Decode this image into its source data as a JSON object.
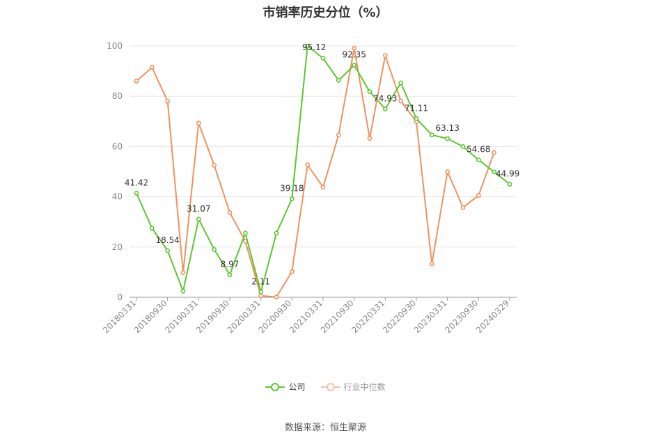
{
  "chart_data": {
    "type": "line",
    "title": "市销率历史分位（%）",
    "ylim": [
      0,
      100
    ],
    "yticks": [
      0,
      20,
      40,
      60,
      80,
      100
    ],
    "grid": true,
    "legend_position": "bottom-center",
    "x_tick_labels": [
      "20180331",
      "20180930",
      "20190331",
      "20190930",
      "20200331",
      "20200930",
      "20210331",
      "20210930",
      "20220331",
      "20220930",
      "20230331",
      "20230930",
      "20240329"
    ],
    "x": [
      "20180331",
      "20180630",
      "20180930",
      "20181231",
      "20190331",
      "20190630",
      "20190930",
      "20191231",
      "20200331",
      "20200630",
      "20200930",
      "20201231",
      "20210331",
      "20210630",
      "20210930",
      "20211231",
      "20220331",
      "20220630",
      "20220930",
      "20221231",
      "20230331",
      "20230630",
      "20230930",
      "20231231",
      "20240329"
    ],
    "series": [
      {
        "name": "公司",
        "color": "#5cc72e",
        "values": [
          41.42,
          27.5,
          18.54,
          2.4,
          31.07,
          19.0,
          8.97,
          25.5,
          2.11,
          25.5,
          39.18,
          100,
          95.12,
          86.3,
          92.35,
          81.8,
          74.93,
          85.3,
          71.11,
          64.6,
          63.13,
          60.0,
          54.68,
          49.9,
          44.99
        ],
        "labels": {
          "0": "41.42",
          "2": "18.54",
          "4": "31.07",
          "6": "8.97",
          "8": "2.11",
          "10": "39.18",
          "12": "95.12",
          "14": "92.35",
          "16": "74.93",
          "18": "71.11",
          "20": "63.13",
          "22": "54.68",
          "24": "44.99"
        }
      },
      {
        "name": "行业中位数",
        "color": "#f0915f",
        "values": [
          86.0,
          91.5,
          78.0,
          9.8,
          69.3,
          52.5,
          33.7,
          22.3,
          0.6,
          0.1,
          10.2,
          52.7,
          43.8,
          64.6,
          99.1,
          63.2,
          96.2,
          78.1,
          69.9,
          13.3,
          50.0,
          35.7,
          40.5,
          57.6,
          null
        ]
      }
    ]
  },
  "legend": {
    "company_label": "公司",
    "industry_label": "行业中位数"
  },
  "source_text": "数据来源：恒生聚源"
}
